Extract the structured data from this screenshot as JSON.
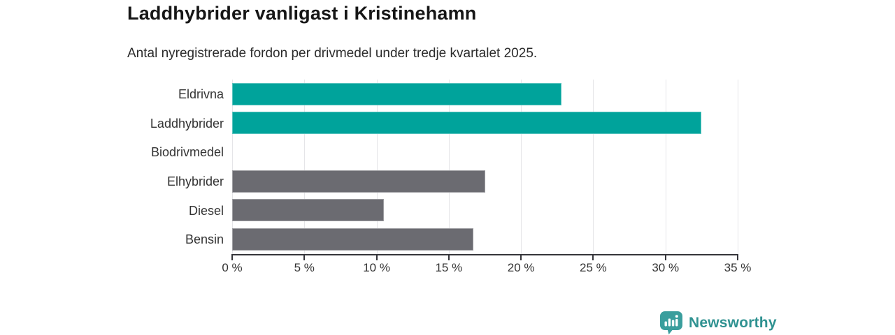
{
  "header": {
    "title": "Laddhybrider vanligast i Kristinehamn",
    "subtitle": "Antal nyregistrerade fordon per drivmedel under tredje kvartalet 2025."
  },
  "chart_data": {
    "type": "bar",
    "orientation": "horizontal",
    "title": "Laddhybrider vanligast i Kristinehamn",
    "subtitle": "Antal nyregistrerade fordon per drivmedel under tredje kvartalet 2025.",
    "categories": [
      "Eldrivna",
      "Laddhybrider",
      "Biodrivmedel",
      "Elhybrider",
      "Diesel",
      "Bensin"
    ],
    "values": [
      22.8,
      32.5,
      0,
      17.5,
      10.5,
      16.7
    ],
    "unit": "%",
    "bar_colors": [
      "#00a39b",
      "#00a39b",
      "#6b6b71",
      "#6b6b71",
      "#6b6b71",
      "#6b6b71"
    ],
    "highlight_color": "#00a39b",
    "base_color": "#6b6b71",
    "xlabel": "",
    "ylabel": "",
    "xlim": [
      0,
      35
    ],
    "x_ticks": [
      0,
      5,
      10,
      15,
      20,
      25,
      30,
      35
    ],
    "x_tick_labels": [
      "0 %",
      "5 %",
      "10 %",
      "15 %",
      "20 %",
      "25 %",
      "30 %",
      "35 %"
    ],
    "grid": "vertical",
    "gridline_color": "#e5e5e8",
    "axis_color": "#35353a",
    "legend_position": "none"
  },
  "footer": {
    "brand": "Newsworthy",
    "brand_color": "#2f9291",
    "logo_icon": "bar-chart-speech-bubble",
    "logo_fill": "#3a9e9d"
  }
}
